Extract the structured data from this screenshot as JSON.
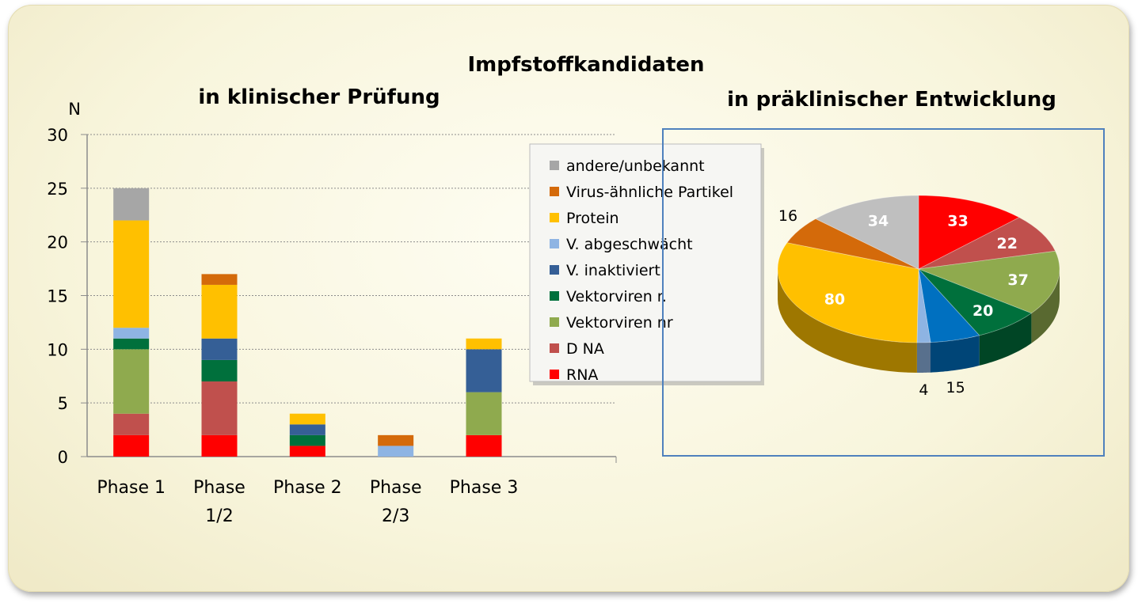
{
  "title_main": "Impfstoffkandidaten",
  "title_left": "in klinischer Prüfung",
  "title_right": "in präklinischer Entwicklung",
  "chart_data": [
    {
      "type": "bar",
      "stacked": true,
      "ylabel": "N",
      "ylim": [
        0,
        30
      ],
      "yticks": [
        "0",
        "5",
        "10",
        "15",
        "20",
        "25",
        "30"
      ],
      "categories": [
        [
          "Phase 1"
        ],
        [
          "Phase",
          "1/2"
        ],
        [
          "Phase 2"
        ],
        [
          "Phase",
          "2/3"
        ],
        [
          "Phase 3"
        ]
      ],
      "series": [
        {
          "name": "RNA",
          "color": "#ff0000",
          "values": [
            2,
            2,
            1,
            0,
            2
          ]
        },
        {
          "name": "D NA",
          "color": "#c0504d",
          "values": [
            2,
            5,
            0,
            0,
            0
          ]
        },
        {
          "name": "Vektorviren nr",
          "color": "#8faa4e",
          "values": [
            6,
            0,
            0,
            0,
            4
          ]
        },
        {
          "name": "Vektorviren r.",
          "color": "#00703c",
          "values": [
            1,
            2,
            1,
            0,
            0
          ]
        },
        {
          "name": "V. inaktiviert",
          "color": "#355f96",
          "values": [
            0,
            2,
            1,
            0,
            4
          ]
        },
        {
          "name": "V. abgeschwächt",
          "color": "#8eb4e3",
          "values": [
            1,
            0,
            0,
            1,
            0
          ]
        },
        {
          "name": "Protein",
          "color": "#ffc000",
          "values": [
            10,
            5,
            1,
            0,
            1
          ]
        },
        {
          "name": "Virus-ähnliche Partikel",
          "color": "#d46a0a",
          "values": [
            0,
            1,
            0,
            1,
            0
          ]
        },
        {
          "name": "andere/unbekannt",
          "color": "#a6a6a6",
          "values": [
            3,
            0,
            0,
            0,
            0
          ]
        }
      ],
      "legend": [
        "andere/unbekannt",
        "Virus-ähnliche Partikel",
        "Protein",
        "V. abgeschwächt",
        "V. inaktiviert",
        "Vektorviren r.",
        "Vektorviren nr",
        "D NA",
        "RNA"
      ],
      "grid": true
    },
    {
      "type": "pie",
      "slices": [
        {
          "name": "RNA",
          "value": 33,
          "label": "33",
          "color": "#ff0000"
        },
        {
          "name": "D NA",
          "value": 22,
          "label": "22",
          "color": "#c0504d"
        },
        {
          "name": "Vektorviren nr",
          "value": 37,
          "label": "37",
          "color": "#8faa4e"
        },
        {
          "name": "Vektorviren r.",
          "value": 20,
          "label": "20",
          "color": "#00703c"
        },
        {
          "name": "V. inaktiviert",
          "value": 15,
          "label": "15",
          "color": "#0070c0"
        },
        {
          "name": "V. abgeschwächt",
          "value": 4,
          "label": "4",
          "color": "#8eb4e3"
        },
        {
          "name": "Protein",
          "value": 80,
          "label": "80",
          "color": "#ffc000"
        },
        {
          "name": "Virus-ähnliche Partikel",
          "value": 16,
          "label": "16",
          "color": "#d46a0a"
        },
        {
          "name": "andere/unbekannt",
          "value": 34,
          "label": "34",
          "color": "#bfbfbf"
        }
      ]
    }
  ]
}
